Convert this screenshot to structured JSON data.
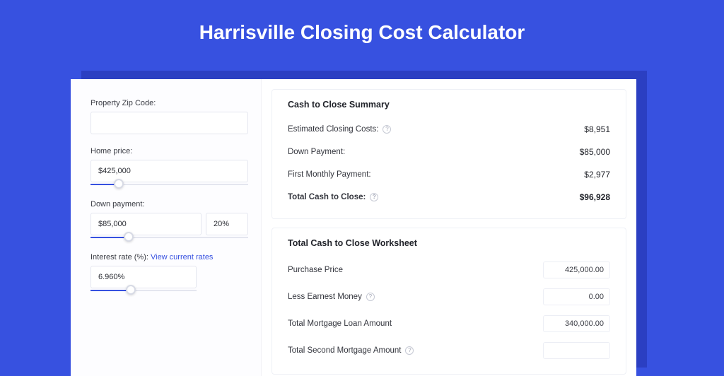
{
  "colors": {
    "page_bg": "#3751e0",
    "shadow": "#2b3fc2",
    "card_bg": "#ffffff",
    "border": "#e4e6ef",
    "accent": "#3751e0",
    "text": "#1f2128",
    "muted": "#9fa3b3"
  },
  "header": {
    "title": "Harrisville Closing Cost Calculator"
  },
  "form": {
    "zip": {
      "label": "Property Zip Code:",
      "value": ""
    },
    "home_price": {
      "label": "Home price:",
      "value": "$425,000",
      "slider_pct": 18
    },
    "down_payment": {
      "label": "Down payment:",
      "value": "$85,000",
      "pct_value": "20%",
      "slider_pct": 24
    },
    "interest": {
      "label": "Interest rate (%):",
      "link_text": "View current rates",
      "value": "6.960%",
      "slider_pct": 38
    }
  },
  "summary": {
    "title": "Cash to Close Summary",
    "rows": [
      {
        "label": "Estimated Closing Costs:",
        "help": true,
        "value": "$8,951",
        "bold": false
      },
      {
        "label": "Down Payment:",
        "help": false,
        "value": "$85,000",
        "bold": false
      },
      {
        "label": "First Monthly Payment:",
        "help": false,
        "value": "$2,977",
        "bold": false
      },
      {
        "label": "Total Cash to Close:",
        "help": true,
        "value": "$96,928",
        "bold": true
      }
    ]
  },
  "worksheet": {
    "title": "Total Cash to Close Worksheet",
    "rows": [
      {
        "label": "Purchase Price",
        "help": false,
        "value": "425,000.00"
      },
      {
        "label": "Less Earnest Money",
        "help": true,
        "value": "0.00"
      },
      {
        "label": "Total Mortgage Loan Amount",
        "help": false,
        "value": "340,000.00"
      },
      {
        "label": "Total Second Mortgage Amount",
        "help": true,
        "value": ""
      }
    ]
  }
}
